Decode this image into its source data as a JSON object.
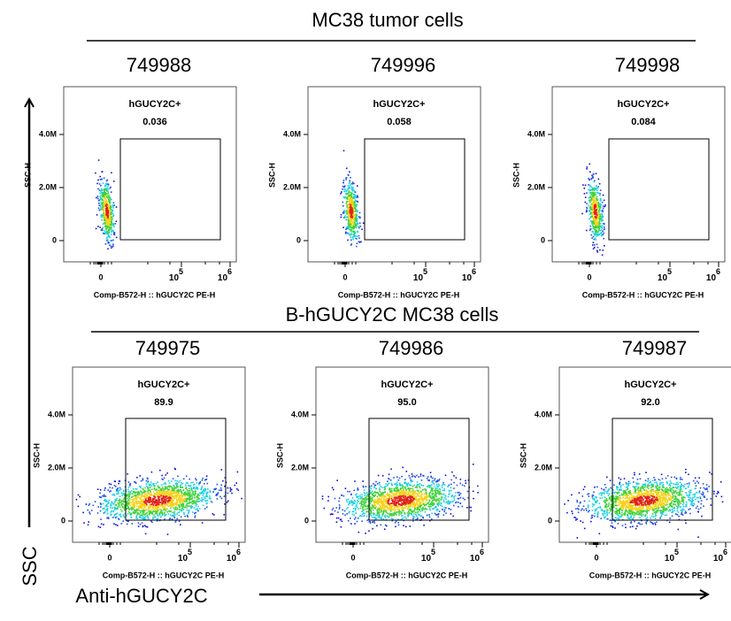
{
  "header_top": "MC38 tumor cells",
  "header_bottom": "B-hGUCY2C MC38 cells",
  "y_arrow_label": "SSC",
  "x_arrow_label": "Anti-hGUCY2C",
  "panels": [
    {
      "sample": "749988",
      "gate_label": "hGUCY2C+",
      "gate_value": "0.036",
      "y_axis_label": "SSC-H",
      "x_axis_label": "Comp-B572-H :: hGUCY2C PE-H",
      "y_tick_labels": [
        "4.0M",
        "2.0M",
        "0"
      ],
      "x_tick_labels": [
        "0",
        {
          "base": "10",
          "exp": "5"
        },
        {
          "base": "10",
          "exp": "6"
        }
      ]
    },
    {
      "sample": "749996",
      "gate_label": "hGUCY2C+",
      "gate_value": "0.058",
      "y_axis_label": "SSC-H",
      "x_axis_label": "Comp-B572-H :: hGUCY2C PE-H",
      "y_tick_labels": [
        "4.0M",
        "2.0M",
        "0"
      ],
      "x_tick_labels": [
        "0",
        {
          "base": "10",
          "exp": "5"
        },
        {
          "base": "10",
          "exp": "6"
        }
      ]
    },
    {
      "sample": "749998",
      "gate_label": "hGUCY2C+",
      "gate_value": "0.084",
      "y_axis_label": "SSC-H",
      "x_axis_label": "Comp-B572-H :: hGUCY2C PE-H",
      "y_tick_labels": [
        "4.0M",
        "2.0M",
        "0"
      ],
      "x_tick_labels": [
        "0",
        {
          "base": "10",
          "exp": "5"
        },
        {
          "base": "10",
          "exp": "6"
        }
      ]
    },
    {
      "sample": "749975",
      "gate_label": "hGUCY2C+",
      "gate_value": "89.9",
      "y_axis_label": "SSC-H",
      "x_axis_label": "Comp-B572-H :: hGUCY2C PE-H",
      "y_tick_labels": [
        "4.0M",
        "2.0M",
        "0"
      ],
      "x_tick_labels": [
        "0",
        {
          "base": "10",
          "exp": "5"
        },
        {
          "base": "10",
          "exp": "6"
        }
      ]
    },
    {
      "sample": "749986",
      "gate_label": "hGUCY2C+",
      "gate_value": "95.0",
      "y_axis_label": "SSC-H",
      "x_axis_label": "Comp-B572-H :: hGUCY2C PE-H",
      "y_tick_labels": [
        "4.0M",
        "2.0M",
        "0"
      ],
      "x_tick_labels": [
        "0",
        {
          "base": "10",
          "exp": "5"
        },
        {
          "base": "10",
          "exp": "6"
        }
      ]
    },
    {
      "sample": "749987",
      "gate_label": "hGUCY2C+",
      "gate_value": "92.0",
      "y_axis_label": "SSC-H",
      "x_axis_label": "Comp-B572-H :: hGUCY2C PE-H",
      "y_tick_labels": [
        "4.0M",
        "2.0M",
        "0"
      ],
      "x_tick_labels": [
        "0",
        {
          "base": "10",
          "exp": "5"
        },
        {
          "base": "10",
          "exp": "6"
        }
      ]
    }
  ]
}
